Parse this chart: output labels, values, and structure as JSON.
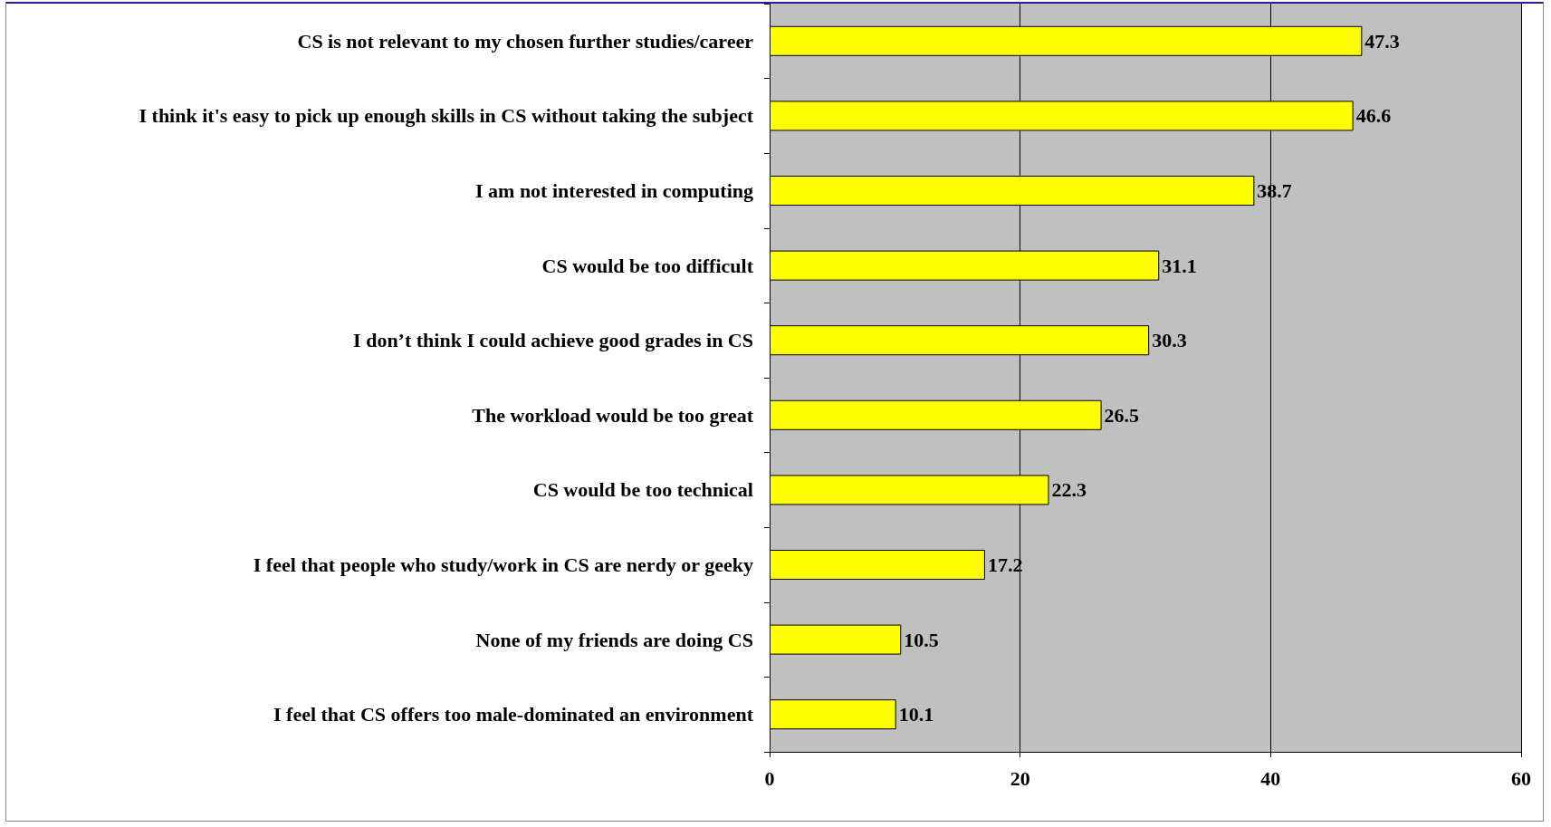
{
  "chart_data": {
    "type": "bar",
    "orientation": "horizontal",
    "categories": [
      "CS is not relevant to my chosen further studies/career",
      "I think it's easy to pick up enough skills in CS without taking the subject",
      "I am not interested in computing",
      "CS would be too difficult",
      "I don’t think I could achieve good grades in CS",
      "The workload would be too great",
      "CS would be too technical",
      "I feel that people who study/work in CS are nerdy or geeky",
      "None of my friends are doing CS",
      "I feel that CS offers too male-dominated an environment"
    ],
    "values": [
      47.3,
      46.6,
      38.7,
      31.1,
      30.3,
      26.5,
      22.3,
      17.2,
      10.5,
      10.1
    ],
    "color": "#ffff00",
    "xlim": [
      0,
      60
    ],
    "xticks": [
      0,
      20,
      40,
      60
    ],
    "grid": "x",
    "data_labels": true
  }
}
